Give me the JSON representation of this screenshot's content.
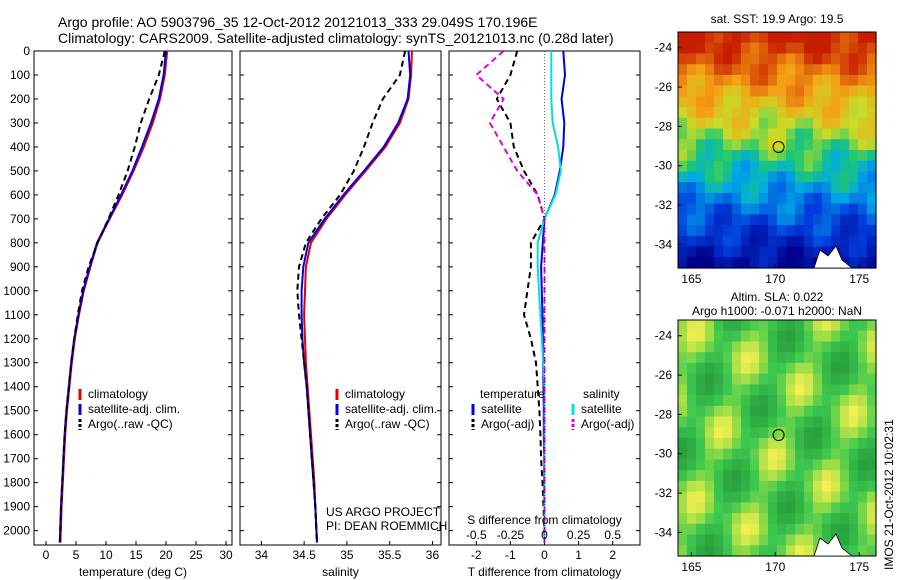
{
  "header": {
    "line1": "Argo profile: AO 5903796_35 12-Oct-2012 20121013_333 29.049S 170.196E",
    "line2": "Climatology: CARS2009. Satellite-adjusted climatology: synTS_20121013.nc (0.28d later)"
  },
  "side_stamp": "IMOS 21-Oct-2012 10:02:31",
  "credits": {
    "line1": "US ARGO PROJECT",
    "line2": "PI: DEAN ROEMMICH"
  },
  "colors": {
    "climatology": "#e00000",
    "satellite": "#0000e0",
    "argo": "#000000",
    "salinity_satellite": "#00e0e0",
    "salinity_argo": "#e000e0"
  },
  "chart_data": [
    {
      "type": "line",
      "xlabel": "temperature (deg C)",
      "ylabel": "",
      "xlim": [
        -2,
        31
      ],
      "ylim": [
        2060,
        0
      ],
      "xticks": [
        "0",
        "5",
        "10",
        "15",
        "20",
        "25",
        "30"
      ],
      "yticks": [
        "0",
        "100",
        "200",
        "300",
        "400",
        "500",
        "600",
        "700",
        "800",
        "900",
        "1000",
        "1100",
        "1200",
        "1300",
        "1400",
        "1500",
        "1600",
        "1700",
        "1800",
        "1900",
        "2000"
      ],
      "legend": [
        "climatology",
        "satellite-adj. clim.",
        "Argo(..raw -QC)"
      ],
      "legend_position": "lower-center",
      "series": [
        {
          "name": "climatology",
          "x": [
            20.2,
            19.8,
            19.0,
            17.8,
            16.3,
            14.6,
            12.7,
            10.6,
            8.6,
            7.4,
            6.3,
            5.5,
            4.8,
            4.3,
            3.9,
            3.5,
            3.2,
            3.0,
            2.8,
            2.6,
            2.4
          ],
          "y": [
            0,
            100,
            200,
            300,
            400,
            500,
            600,
            700,
            800,
            900,
            1000,
            1100,
            1200,
            1300,
            1400,
            1500,
            1600,
            1700,
            1800,
            1900,
            2050
          ]
        },
        {
          "name": "satellite-adj. clim.",
          "x": [
            20.0,
            19.6,
            18.8,
            17.5,
            16.0,
            14.4,
            12.5,
            10.5,
            8.5,
            7.3,
            6.2,
            5.4,
            4.7,
            4.2,
            3.8,
            3.4,
            3.1,
            2.9,
            2.7,
            2.5,
            2.3
          ],
          "y": [
            0,
            100,
            200,
            300,
            400,
            500,
            600,
            700,
            800,
            900,
            1000,
            1100,
            1200,
            1300,
            1400,
            1500,
            1600,
            1700,
            1800,
            1900,
            2050
          ]
        },
        {
          "name": "Argo(..raw -QC)",
          "x": [
            19.8,
            18.8,
            17.2,
            15.8,
            14.8,
            13.6,
            12.1,
            10.4,
            8.6,
            7.1,
            6.0,
            5.3,
            4.7,
            4.2,
            3.8,
            3.4,
            3.1,
            2.9,
            2.7,
            2.5,
            2.3
          ],
          "y": [
            0,
            100,
            200,
            300,
            400,
            500,
            600,
            700,
            800,
            900,
            1000,
            1100,
            1200,
            1300,
            1400,
            1500,
            1600,
            1700,
            1800,
            1900,
            2050
          ]
        }
      ]
    },
    {
      "type": "line",
      "xlabel": "salinity",
      "ylabel": "",
      "xlim": [
        33.75,
        36.1
      ],
      "ylim": [
        2060,
        0
      ],
      "xticks": [
        "34",
        "34.5",
        "35",
        "35.5",
        "36"
      ],
      "legend": [
        "climatology",
        "satellite-adj. clim.",
        "Argo(..raw -QC)"
      ],
      "legend_position": "lower-right",
      "series": [
        {
          "name": "climatology",
          "x": [
            35.76,
            35.75,
            35.72,
            35.62,
            35.45,
            35.22,
            34.98,
            34.76,
            34.58,
            34.52,
            34.51,
            34.5,
            34.51,
            34.52,
            34.54,
            34.56,
            34.58,
            34.6,
            34.62,
            34.63,
            34.65
          ],
          "y": [
            0,
            100,
            200,
            300,
            400,
            500,
            600,
            700,
            800,
            900,
            1000,
            1100,
            1200,
            1300,
            1400,
            1500,
            1600,
            1700,
            1800,
            1900,
            2050
          ]
        },
        {
          "name": "satellite-adj. clim.",
          "x": [
            35.72,
            35.74,
            35.71,
            35.6,
            35.43,
            35.2,
            34.96,
            34.74,
            34.55,
            34.49,
            34.47,
            34.47,
            34.48,
            34.5,
            34.53,
            34.55,
            34.57,
            34.59,
            34.61,
            34.63,
            34.65
          ],
          "y": [
            0,
            100,
            200,
            300,
            400,
            500,
            600,
            700,
            800,
            900,
            1000,
            1100,
            1200,
            1300,
            1400,
            1500,
            1600,
            1700,
            1800,
            1900,
            2050
          ]
        },
        {
          "name": "Argo(..raw -QC)",
          "x": [
            35.68,
            35.62,
            35.42,
            35.3,
            35.2,
            35.08,
            34.92,
            34.7,
            34.52,
            34.44,
            34.42,
            34.44,
            34.47,
            34.5,
            34.53,
            34.55,
            34.57,
            34.59,
            34.61,
            34.63,
            34.65
          ],
          "y": [
            0,
            100,
            200,
            300,
            400,
            500,
            600,
            700,
            800,
            900,
            1000,
            1100,
            1200,
            1300,
            1400,
            1500,
            1600,
            1700,
            1800,
            1900,
            2050
          ]
        }
      ]
    },
    {
      "type": "line",
      "xlabel": "T difference from climatology",
      "xlabel_top": "S difference from climatology",
      "ylabel": "",
      "xlim": [
        -2.8,
        2.8
      ],
      "ylim": [
        2060,
        0
      ],
      "xticks": [
        "-2",
        "-1",
        "0",
        "1",
        "2"
      ],
      "xticks_s": [
        "-0.5",
        "-0.25",
        "0",
        "0.25",
        "0.5"
      ],
      "legend_groups": [
        "temperature",
        "salinity"
      ],
      "legend": [
        "satellite",
        "Argo(-adj)",
        "satellite",
        "Argo(-adj)"
      ],
      "legend_position": "lower-center",
      "series": [
        {
          "name": "satellite",
          "group": "temperature",
          "x": [
            0.55,
            0.6,
            0.5,
            0.58,
            0.55,
            0.45,
            0.3,
            0.0,
            -0.05,
            -0.1,
            -0.08,
            -0.06,
            -0.05,
            -0.04,
            -0.03,
            -0.02,
            -0.02,
            -0.01,
            -0.01,
            0.0,
            0.0
          ],
          "y": [
            0,
            100,
            200,
            300,
            400,
            500,
            600,
            700,
            800,
            900,
            1000,
            1100,
            1200,
            1300,
            1400,
            1500,
            1600,
            1700,
            1800,
            1900,
            2050
          ]
        },
        {
          "name": "Argo(-adj)",
          "group": "temperature",
          "x": [
            -0.8,
            -1.0,
            -1.4,
            -1.0,
            -0.9,
            -0.6,
            -0.2,
            0.0,
            -0.4,
            -0.4,
            -0.5,
            -0.6,
            -0.4,
            -0.25,
            -0.2,
            -0.15,
            -0.12,
            -0.1,
            -0.06,
            -0.03,
            0.0
          ],
          "y": [
            0,
            100,
            200,
            300,
            400,
            500,
            600,
            700,
            800,
            900,
            1000,
            1100,
            1200,
            1300,
            1400,
            1500,
            1600,
            1700,
            1800,
            1900,
            2050
          ]
        },
        {
          "name": "satellite",
          "group": "salinity",
          "x": [
            0.05,
            0.05,
            0.05,
            0.06,
            0.1,
            0.12,
            0.08,
            0.0,
            -0.05,
            -0.05,
            -0.04,
            -0.03,
            -0.02,
            -0.01,
            0.0,
            0.0,
            0.0,
            0.0,
            0.0,
            0.0,
            0.0
          ],
          "y": [
            0,
            100,
            200,
            300,
            400,
            500,
            600,
            700,
            800,
            900,
            1000,
            1100,
            1200,
            1300,
            1400,
            1500,
            1600,
            1700,
            1800,
            1900,
            2050
          ]
        },
        {
          "name": "Argo(-adj)",
          "group": "salinity",
          "x": [
            -0.3,
            -0.5,
            -0.3,
            -0.4,
            -0.3,
            -0.2,
            -0.05,
            0.0,
            0.0,
            0.0,
            0.0,
            0.0,
            0.0,
            0.0,
            0.0,
            0.0,
            0.0,
            0.0,
            0.0,
            0.0,
            0.0
          ],
          "y": [
            0,
            100,
            200,
            300,
            400,
            500,
            600,
            700,
            800,
            900,
            1000,
            1100,
            1200,
            1300,
            1400,
            1500,
            1600,
            1700,
            1800,
            1900,
            2050
          ]
        }
      ]
    },
    {
      "type": "heatmap",
      "title": "sat. SST: 19.9  Argo: 19.5",
      "xlim": [
        164.2,
        176
      ],
      "ylim": [
        -35.2,
        -23.2
      ],
      "xticks": [
        "165",
        "170",
        "175"
      ],
      "yticks": [
        "-24",
        "-26",
        "-28",
        "-30",
        "-32",
        "-34"
      ],
      "marker": {
        "lon": 170.196,
        "lat": -29.049
      },
      "colorbar": false
    },
    {
      "type": "heatmap",
      "title": "Altim. SLA: 0.022",
      "subtitle": "Argo h1000: -0.071  h2000: NaN",
      "xlim": [
        164.2,
        176
      ],
      "ylim": [
        -35.2,
        -23.2
      ],
      "xticks": [
        "165",
        "170",
        "175"
      ],
      "yticks": [
        "-24",
        "-26",
        "-28",
        "-30",
        "-32",
        "-34"
      ],
      "marker": {
        "lon": 170.196,
        "lat": -29.049
      },
      "colorbar": false
    }
  ]
}
